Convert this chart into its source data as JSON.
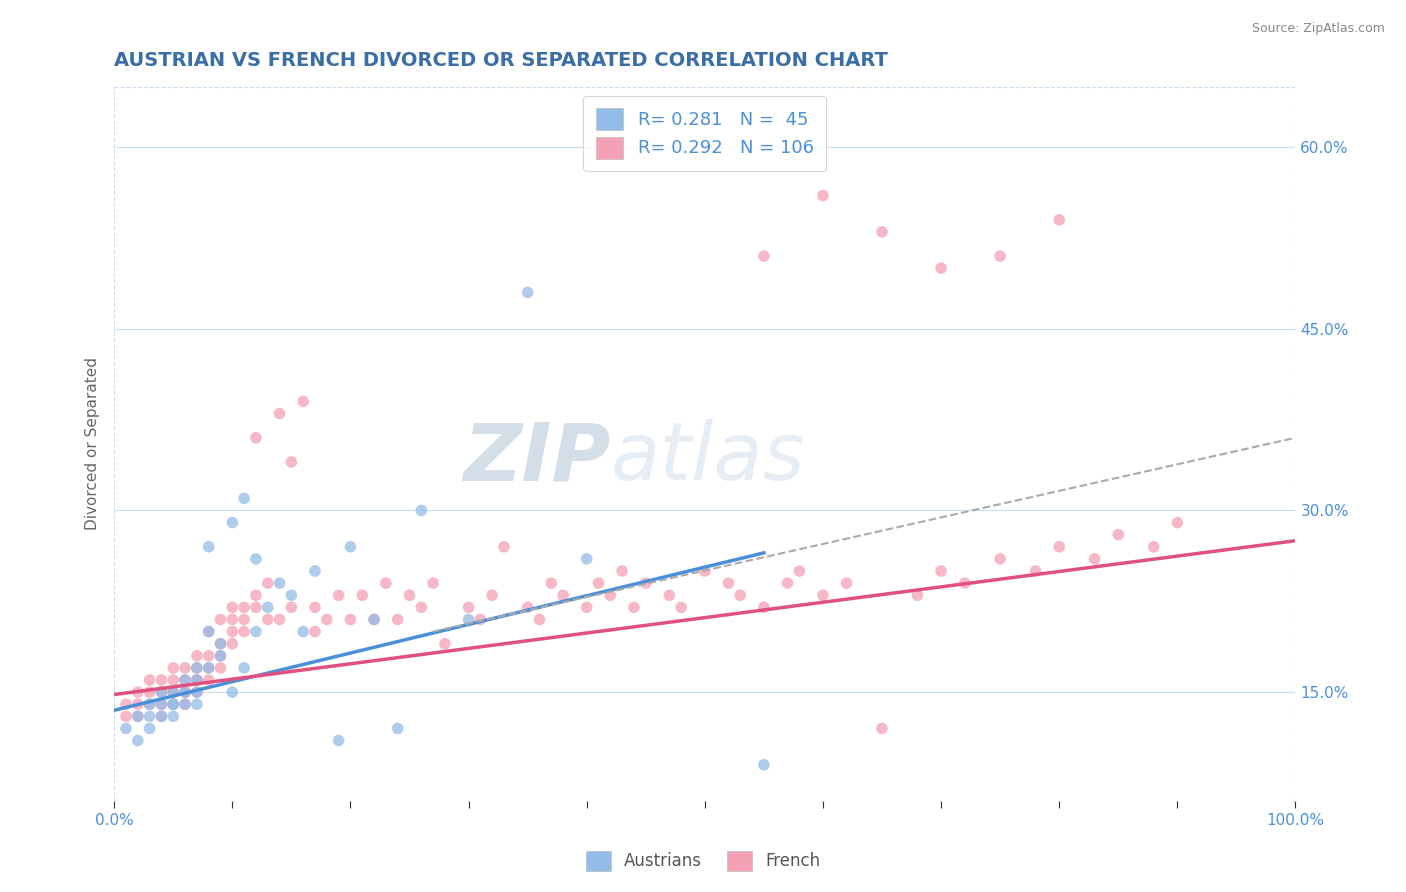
{
  "title": "AUSTRIAN VS FRENCH DIVORCED OR SEPARATED CORRELATION CHART",
  "source_text": "Source: ZipAtlas.com",
  "xlabel": "",
  "ylabel": "Divorced or Separated",
  "xlim": [
    0.0,
    1.0
  ],
  "ylim": [
    0.06,
    0.65
  ],
  "x_ticks": [
    0.0,
    0.1,
    0.2,
    0.3,
    0.4,
    0.5,
    0.6,
    0.7,
    0.8,
    0.9,
    1.0
  ],
  "x_tick_labels": [
    "0.0%",
    "",
    "",
    "",
    "",
    "",
    "",
    "",
    "",
    "",
    "100.0%"
  ],
  "y_ticks": [
    0.15,
    0.3,
    0.45,
    0.6
  ],
  "y_tick_labels": [
    "15.0%",
    "30.0%",
    "45.0%",
    "60.0%"
  ],
  "legend_r_austrians": "0.281",
  "legend_n_austrians": "45",
  "legend_r_french": "0.292",
  "legend_n_french": "106",
  "legend_label_austrians": "Austrians",
  "legend_label_french": "French",
  "color_austrians": "#94bce8",
  "color_french": "#f4a0b5",
  "trendline_austrians_color": "#4a90d9",
  "trendline_french_color": "#e05080",
  "trendline_dashed_color": "#aaaaaa",
  "background_color": "#ffffff",
  "grid_color": "#c8ddf0",
  "watermark_zip": "ZIP",
  "watermark_atlas": "atlas",
  "title_color": "#3a6ea5",
  "axis_tick_color": "#4a90d9",
  "austrians_x": [
    0.01,
    0.02,
    0.02,
    0.03,
    0.03,
    0.03,
    0.04,
    0.04,
    0.04,
    0.05,
    0.05,
    0.05,
    0.05,
    0.06,
    0.06,
    0.06,
    0.07,
    0.07,
    0.07,
    0.07,
    0.08,
    0.08,
    0.08,
    0.09,
    0.09,
    0.1,
    0.1,
    0.11,
    0.11,
    0.12,
    0.12,
    0.13,
    0.14,
    0.15,
    0.16,
    0.17,
    0.19,
    0.2,
    0.22,
    0.24,
    0.26,
    0.3,
    0.35,
    0.4,
    0.55
  ],
  "austrians_y": [
    0.12,
    0.13,
    0.11,
    0.14,
    0.13,
    0.12,
    0.14,
    0.13,
    0.15,
    0.14,
    0.15,
    0.13,
    0.14,
    0.15,
    0.14,
    0.16,
    0.16,
    0.15,
    0.17,
    0.14,
    0.27,
    0.17,
    0.2,
    0.19,
    0.18,
    0.15,
    0.29,
    0.31,
    0.17,
    0.26,
    0.2,
    0.22,
    0.24,
    0.23,
    0.2,
    0.25,
    0.11,
    0.27,
    0.21,
    0.12,
    0.3,
    0.21,
    0.48,
    0.26,
    0.09
  ],
  "french_x": [
    0.01,
    0.01,
    0.02,
    0.02,
    0.02,
    0.03,
    0.03,
    0.03,
    0.04,
    0.04,
    0.04,
    0.04,
    0.05,
    0.05,
    0.05,
    0.05,
    0.05,
    0.06,
    0.06,
    0.06,
    0.06,
    0.06,
    0.07,
    0.07,
    0.07,
    0.07,
    0.07,
    0.08,
    0.08,
    0.08,
    0.08,
    0.09,
    0.09,
    0.09,
    0.09,
    0.1,
    0.1,
    0.1,
    0.1,
    0.11,
    0.11,
    0.11,
    0.12,
    0.12,
    0.12,
    0.13,
    0.13,
    0.14,
    0.14,
    0.15,
    0.15,
    0.16,
    0.17,
    0.17,
    0.18,
    0.19,
    0.2,
    0.21,
    0.22,
    0.23,
    0.24,
    0.25,
    0.26,
    0.27,
    0.28,
    0.3,
    0.31,
    0.32,
    0.33,
    0.35,
    0.36,
    0.37,
    0.38,
    0.4,
    0.41,
    0.42,
    0.43,
    0.44,
    0.45,
    0.47,
    0.48,
    0.5,
    0.52,
    0.53,
    0.55,
    0.57,
    0.58,
    0.6,
    0.62,
    0.65,
    0.68,
    0.7,
    0.72,
    0.75,
    0.78,
    0.8,
    0.83,
    0.85,
    0.88,
    0.9,
    0.55,
    0.6,
    0.65,
    0.7,
    0.75,
    0.8
  ],
  "french_y": [
    0.13,
    0.14,
    0.14,
    0.15,
    0.13,
    0.15,
    0.14,
    0.16,
    0.14,
    0.15,
    0.16,
    0.13,
    0.15,
    0.14,
    0.16,
    0.15,
    0.17,
    0.15,
    0.16,
    0.14,
    0.17,
    0.15,
    0.16,
    0.15,
    0.17,
    0.16,
    0.18,
    0.16,
    0.17,
    0.2,
    0.18,
    0.17,
    0.19,
    0.21,
    0.18,
    0.2,
    0.19,
    0.21,
    0.22,
    0.2,
    0.22,
    0.21,
    0.23,
    0.22,
    0.36,
    0.21,
    0.24,
    0.21,
    0.38,
    0.22,
    0.34,
    0.39,
    0.2,
    0.22,
    0.21,
    0.23,
    0.21,
    0.23,
    0.21,
    0.24,
    0.21,
    0.23,
    0.22,
    0.24,
    0.19,
    0.22,
    0.21,
    0.23,
    0.27,
    0.22,
    0.21,
    0.24,
    0.23,
    0.22,
    0.24,
    0.23,
    0.25,
    0.22,
    0.24,
    0.23,
    0.22,
    0.25,
    0.24,
    0.23,
    0.22,
    0.24,
    0.25,
    0.23,
    0.24,
    0.12,
    0.23,
    0.25,
    0.24,
    0.26,
    0.25,
    0.27,
    0.26,
    0.28,
    0.27,
    0.29,
    0.51,
    0.56,
    0.53,
    0.5,
    0.51,
    0.54
  ],
  "aus_trend_x0": 0.0,
  "aus_trend_x1": 0.55,
  "aus_trend_y0": 0.135,
  "aus_trend_y1": 0.265,
  "fr_trend_x0": 0.0,
  "fr_trend_x1": 1.0,
  "fr_trend_y0": 0.148,
  "fr_trend_y1": 0.275,
  "dash_trend_x0": 0.27,
  "dash_trend_x1": 1.0,
  "dash_trend_y0": 0.2,
  "dash_trend_y1": 0.36
}
